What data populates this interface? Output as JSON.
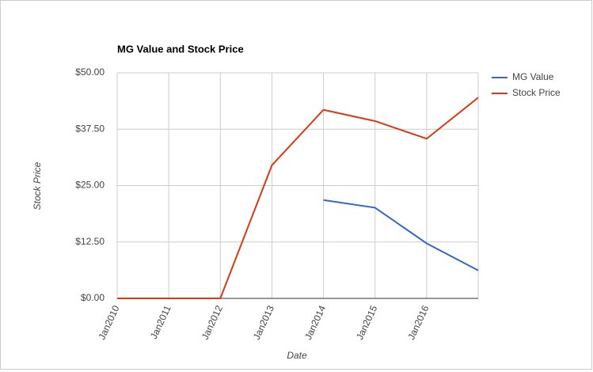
{
  "chart_data": {
    "type": "line",
    "title": "MG Value and Stock Price",
    "x_label": "Date",
    "y_label": "Stock Price",
    "categories": [
      "Jan2010",
      "Jan2011",
      "Jan2012",
      "Jan2013",
      "Jan2014",
      "Jan2015",
      "Jan2016",
      null
    ],
    "series": [
      {
        "name": "MG Value",
        "color": "#3366cc",
        "values": [
          null,
          null,
          null,
          null,
          21.8,
          20.1,
          12.2,
          6.2
        ]
      },
      {
        "name": "Stock Price",
        "color": "#dc3912",
        "values": [
          0,
          0,
          0,
          29.5,
          41.8,
          39.3,
          35.4,
          44.5
        ]
      }
    ],
    "ylim": [
      0,
      50
    ],
    "yticks": [
      {
        "value": 0,
        "label": "$0.00"
      },
      {
        "value": 12.5,
        "label": "$12.50"
      },
      {
        "value": 25,
        "label": "$25.00"
      },
      {
        "value": 37.5,
        "label": "$37.50"
      },
      {
        "value": 50,
        "label": "$50.00"
      }
    ],
    "grid": true,
    "legend": "right"
  }
}
